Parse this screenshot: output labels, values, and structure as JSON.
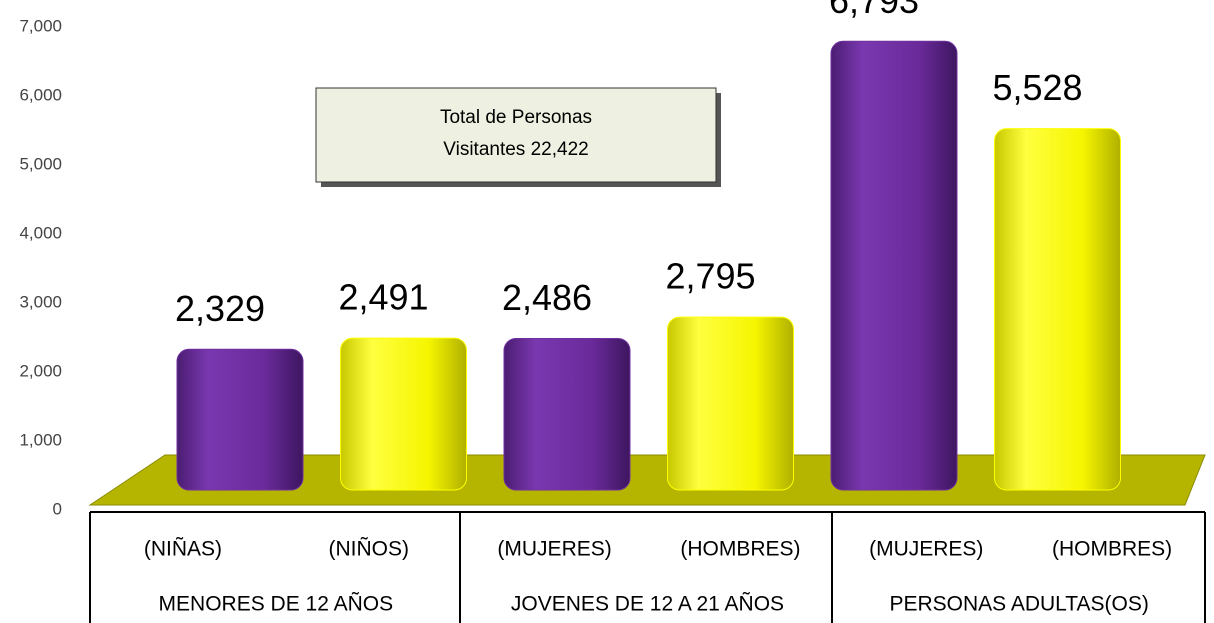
{
  "chart_data": {
    "type": "bar",
    "categories": [
      "(NIÑAS)",
      "(NIÑOS)",
      "(MUJERES)",
      "(HOMBRES)",
      "(MUJERES)",
      "(HOMBRES)"
    ],
    "groups": [
      "MENORES DE 12 AÑOS",
      "JOVENES DE 12 A 21 AÑOS",
      "PERSONAS ADULTAS(OS)"
    ],
    "values": [
      2329,
      2491,
      2486,
      2795,
      6793,
      5528
    ],
    "value_labels": [
      "2,329",
      "2,491",
      "2,486",
      "2,795",
      "6,793",
      "5,528"
    ],
    "colors": [
      "#7030a0",
      "#ffff00",
      "#7030a0",
      "#ffff00",
      "#7030a0",
      "#ffff00"
    ],
    "ylim": [
      0,
      7000
    ],
    "yticks": [
      0,
      {
        "value": 1000,
        "label": "1,000"
      },
      {
        "value": 2000,
        "label": "2,000"
      },
      {
        "value": 3000,
        "label": "3,000"
      },
      {
        "value": 4000,
        "label": "4,000"
      },
      {
        "value": 5000,
        "label": "5,000"
      },
      {
        "value": 6000,
        "label": "6,000"
      },
      {
        "value": 7000,
        "label": "7,000"
      }
    ],
    "annotation": [
      "Total de Personas",
      "Visitantes  22,422"
    ]
  }
}
